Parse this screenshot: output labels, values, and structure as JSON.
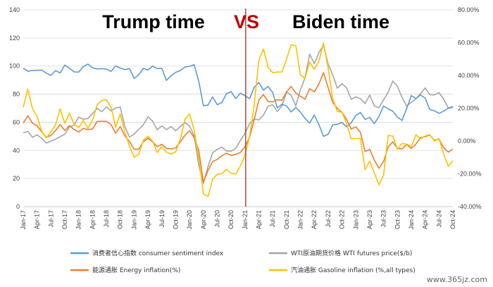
{
  "chart_data": {
    "type": "line",
    "annotations": {
      "left_title": "Trump time",
      "vs": "VS",
      "right_title": "Biden time"
    },
    "watermark": "www.365jz.com",
    "x": [
      "Jan-17",
      "Feb-17",
      "Mar-17",
      "Apr-17",
      "May-17",
      "Jun-17",
      "Jul-17",
      "Aug-17",
      "Sep-17",
      "Oct-17",
      "Nov-17",
      "Dec-17",
      "Jan-18",
      "Feb-18",
      "Mar-18",
      "Apr-18",
      "May-18",
      "Jun-18",
      "Jul-18",
      "Aug-18",
      "Sep-18",
      "Oct-18",
      "Nov-18",
      "Dec-18",
      "Jan-19",
      "Feb-19",
      "Mar-19",
      "Apr-19",
      "May-19",
      "Jun-19",
      "Jul-19",
      "Aug-19",
      "Sep-19",
      "Oct-19",
      "Nov-19",
      "Dec-19",
      "Jan-20",
      "Feb-20",
      "Mar-20",
      "Apr-20",
      "May-20",
      "Jun-20",
      "Jul-20",
      "Aug-20",
      "Sep-20",
      "Oct-20",
      "Nov-20",
      "Dec-20",
      "Jan-21",
      "Feb-21",
      "Mar-21",
      "Apr-21",
      "May-21",
      "Jun-21",
      "Jul-21",
      "Aug-21",
      "Sep-21",
      "Oct-21",
      "Nov-21",
      "Dec-21",
      "Jan-22",
      "Feb-22",
      "Mar-22",
      "Apr-22",
      "May-22",
      "Jun-22",
      "Jul-22",
      "Aug-22",
      "Sep-22",
      "Oct-22",
      "Nov-22",
      "Dec-22",
      "Jan-23",
      "Feb-23",
      "Mar-23",
      "Apr-23",
      "May-23",
      "Jun-23",
      "Jul-23",
      "Aug-23",
      "Sep-23",
      "Oct-23",
      "Nov-23",
      "Dec-23",
      "Jan-24",
      "Feb-24",
      "Mar-24",
      "Apr-24",
      "May-24",
      "Jun-24",
      "Jul-24",
      "Aug-24",
      "Sep-24",
      "Oct-24"
    ],
    "x_tick_labels": [
      "Jan-17",
      "Apr-17",
      "Jul-17",
      "Oct-17",
      "Jan-18",
      "Apr-18",
      "Jul-18",
      "Oct-18",
      "Jan-19",
      "Apr-19",
      "Jul-19",
      "Oct-19",
      "Jan-20",
      "Apr-20",
      "Jul-20",
      "Oct-20",
      "Jan-21",
      "Apr-21",
      "Jul-21",
      "Oct-21",
      "Jan-22",
      "Apr-22",
      "Jul-22",
      "Oct-22",
      "Jan-23",
      "Apr-23",
      "Jul-23",
      "Oct-23",
      "Jan-24",
      "Apr-24",
      "Jul-24",
      "Oct-24"
    ],
    "y_left": {
      "ylim": [
        0,
        140
      ],
      "ticks": [
        0,
        20,
        40,
        60,
        80,
        100,
        120,
        140
      ]
    },
    "y_right": {
      "ylim": [
        -0.4,
        0.8
      ],
      "ticks": [
        "-40.00%",
        "-20.00%",
        "0.00%",
        "20.00%",
        "40.00%",
        "60.00%",
        "80.00%"
      ]
    },
    "divider_at": "Jan-21",
    "legend_position": "bottom",
    "series": [
      {
        "name": "消费者信心指数 consumer sentiment index",
        "axis": "left",
        "color": "#5B9BD5",
        "values": [
          98.5,
          96.3,
          96.9,
          97.0,
          97.1,
          95.0,
          93.4,
          96.8,
          95.1,
          100.7,
          98.5,
          95.9,
          95.7,
          99.7,
          101.4,
          98.8,
          98.0,
          98.2,
          97.9,
          96.2,
          100.1,
          98.6,
          97.5,
          98.3,
          91.2,
          93.8,
          98.4,
          97.2,
          100.0,
          98.2,
          98.4,
          89.8,
          93.2,
          95.5,
          96.8,
          99.3,
          99.8,
          101.0,
          89.1,
          71.8,
          72.3,
          78.1,
          72.5,
          74.1,
          80.4,
          81.8,
          76.9,
          80.7,
          79.0,
          76.8,
          84.9,
          88.3,
          82.9,
          85.5,
          81.2,
          70.3,
          72.8,
          71.7,
          67.4,
          70.6,
          67.2,
          62.8,
          59.4,
          65.2,
          58.4,
          50.0,
          51.5,
          58.2,
          58.6,
          59.9,
          56.8,
          59.7,
          64.9,
          67.0,
          62.0,
          63.5,
          59.0,
          64.2,
          71.6,
          69.5,
          67.9,
          63.8,
          61.3,
          69.7,
          79.0,
          76.9,
          79.4,
          77.2,
          69.1,
          68.2,
          66.4,
          67.9,
          70.1,
          70.5
        ]
      },
      {
        "name": "WTI原油期货价格 WTI futures price($/b)",
        "axis": "left",
        "color": "#A5A5A5",
        "values": [
          52.5,
          53.5,
          49.3,
          51.1,
          48.5,
          45.2,
          46.6,
          48.0,
          49.8,
          51.6,
          56.7,
          57.9,
          63.7,
          62.2,
          62.7,
          66.3,
          69.9,
          67.5,
          71.0,
          68.1,
          70.2,
          70.8,
          57.0,
          49.5,
          51.6,
          55.0,
          58.2,
          63.9,
          60.8,
          54.7,
          57.4,
          54.8,
          57.0,
          54.0,
          57.0,
          59.8,
          57.5,
          50.5,
          29.2,
          16.6,
          28.6,
          38.3,
          40.7,
          42.3,
          39.6,
          39.4,
          41.4,
          47.0,
          52.1,
          59.1,
          62.4,
          61.7,
          65.2,
          71.4,
          72.5,
          67.7,
          71.6,
          81.5,
          79.2,
          71.7,
          83.2,
          91.6,
          108.5,
          101.8,
          109.5,
          114.8,
          101.6,
          93.7,
          84.3,
          87.6,
          84.4,
          76.4,
          78.1,
          76.8,
          73.3,
          79.4,
          71.6,
          70.3,
          76.0,
          81.4,
          89.4,
          85.6,
          77.7,
          71.6,
          74.2,
          76.6,
          80.4,
          84.4,
          79.6,
          79.5,
          81.1,
          76.6,
          70.2,
          71.4
        ]
      },
      {
        "name": "能源通胀 Energy inflation(%)",
        "axis": "right",
        "color": "#ED7D31",
        "values": [
          0.11,
          0.154,
          0.109,
          0.093,
          0.056,
          0.023,
          0.034,
          0.064,
          0.101,
          0.064,
          0.094,
          0.071,
          0.055,
          0.077,
          0.07,
          0.073,
          0.119,
          0.121,
          0.12,
          0.101,
          0.048,
          0.089,
          0.031,
          -0.003,
          -0.049,
          -0.05,
          -0.004,
          0.017,
          -0.005,
          -0.034,
          -0.02,
          -0.044,
          -0.048,
          -0.042,
          -0.006,
          0.034,
          0.062,
          0.021,
          -0.057,
          -0.25,
          -0.18,
          -0.125,
          -0.112,
          -0.09,
          -0.074,
          -0.088,
          -0.081,
          -0.07,
          -0.035,
          0.022,
          0.132,
          0.25,
          0.283,
          0.241,
          0.239,
          0.252,
          0.248,
          0.3,
          0.333,
          0.293,
          0.273,
          0.255,
          0.32,
          0.3,
          0.347,
          0.417,
          0.326,
          0.235,
          0.199,
          0.175,
          0.131,
          0.073,
          0.087,
          0.052,
          -0.064,
          -0.051,
          -0.116,
          -0.166,
          -0.125,
          -0.036,
          -0.005,
          -0.045,
          -0.048,
          -0.021,
          -0.046,
          -0.019,
          0.021,
          0.026,
          0.037,
          0.004,
          0.011,
          -0.04,
          -0.068,
          -0.049
        ]
      },
      {
        "name": "汽油通胀 Gasoline inflation (%,all types)",
        "axis": "right",
        "color": "#FFC000",
        "values": [
          0.206,
          0.316,
          0.198,
          0.15,
          0.059,
          0.019,
          0.056,
          0.099,
          0.197,
          0.108,
          0.17,
          0.101,
          0.083,
          0.125,
          0.078,
          0.128,
          0.221,
          0.247,
          0.253,
          0.208,
          0.085,
          0.165,
          0.055,
          -0.033,
          -0.098,
          -0.08,
          0.004,
          0.03,
          -0.001,
          -0.07,
          -0.035,
          -0.068,
          -0.08,
          -0.066,
          0.012,
          0.132,
          0.166,
          0.067,
          -0.105,
          -0.322,
          -0.338,
          -0.232,
          -0.203,
          -0.199,
          -0.172,
          -0.197,
          -0.202,
          -0.152,
          -0.086,
          0.028,
          0.222,
          0.493,
          0.561,
          0.45,
          0.417,
          0.421,
          0.421,
          0.499,
          0.587,
          0.582,
          0.404,
          0.382,
          0.482,
          0.437,
          0.487,
          0.597,
          0.447,
          0.257,
          0.181,
          0.175,
          0.108,
          0.013,
          0.015,
          0.015,
          -0.174,
          -0.123,
          -0.194,
          -0.267,
          -0.208,
          0.034,
          0.03,
          -0.05,
          -0.015,
          -0.019,
          -0.033,
          0.038,
          0.013,
          0.03,
          0.04,
          0.0,
          0.015,
          -0.077,
          -0.154,
          -0.12
        ]
      }
    ]
  }
}
